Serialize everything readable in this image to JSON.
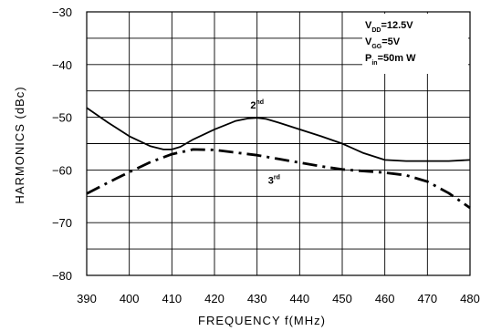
{
  "chart_data": {
    "type": "line",
    "title": "",
    "xlabel": "FREQUENCY f(MHz)",
    "ylabel": "HARMONICS (dBc)",
    "xlim": [
      390,
      480
    ],
    "ylim": [
      -80,
      -30
    ],
    "x_ticks": [
      390,
      400,
      410,
      420,
      430,
      440,
      450,
      460,
      470,
      480
    ],
    "y_ticks": [
      -30,
      -40,
      -50,
      -60,
      -70,
      -80
    ],
    "grid": true,
    "conditions": [
      {
        "main": "V",
        "sub": "DD",
        "rest": "=12.5V"
      },
      {
        "main": "V",
        "sub": "GG",
        "rest": "=5V"
      },
      {
        "main": "P",
        "sub": "in",
        "rest": "=50m W"
      }
    ],
    "series": [
      {
        "name": "2nd",
        "label_main": "2",
        "label_sup": "nd",
        "label_at": [
          430,
          -48.3
        ],
        "style": "solid",
        "x": [
          390,
          395,
          400,
          405,
          408,
          410,
          412,
          415,
          420,
          425,
          428,
          430,
          432,
          435,
          440,
          445,
          450,
          455,
          460,
          465,
          470,
          475,
          480
        ],
        "y": [
          -48.2,
          -51,
          -53.6,
          -55.5,
          -56.1,
          -56.1,
          -55.6,
          -54.2,
          -52.3,
          -50.7,
          -50.2,
          -50.1,
          -50.3,
          -51,
          -52.3,
          -53.6,
          -55,
          -56.8,
          -58.1,
          -58.3,
          -58.3,
          -58.3,
          -58.1
        ]
      },
      {
        "name": "3rd",
        "label_main": "3",
        "label_sup": "rd",
        "label_at": [
          434,
          -62.6
        ],
        "style": "dashdot",
        "x": [
          390,
          395,
          400,
          405,
          410,
          415,
          420,
          425,
          430,
          435,
          440,
          445,
          450,
          455,
          460,
          465,
          470,
          475,
          480
        ],
        "y": [
          -64.5,
          -62.4,
          -60.4,
          -58.5,
          -57,
          -56.1,
          -56.2,
          -56.7,
          -57.2,
          -57.9,
          -58.6,
          -59.3,
          -59.9,
          -60.2,
          -60.5,
          -61,
          -62.2,
          -64.4,
          -67.2
        ]
      }
    ]
  }
}
